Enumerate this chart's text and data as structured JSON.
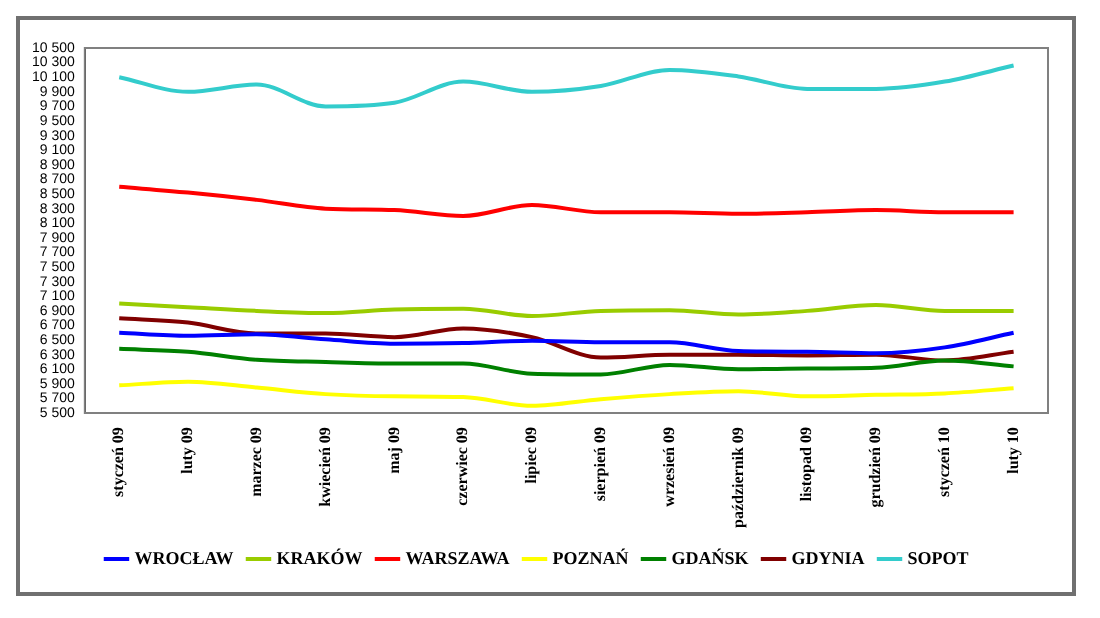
{
  "chart_data": {
    "type": "line",
    "categories": [
      "styczeń 09",
      "luty 09",
      "marzec 09",
      "kwiecień 09",
      "maj 09",
      "czerwiec 09",
      "lipiec 09",
      "sierpień 09",
      "wrzesień 09",
      "październik 09",
      "listopad 09",
      "grudzień 09",
      "styczeń 10",
      "luty 10"
    ],
    "series": [
      {
        "name": "WROCŁAW",
        "color": "#0000ff",
        "values": [
          6600,
          6560,
          6580,
          6510,
          6450,
          6460,
          6490,
          6470,
          6470,
          6350,
          6340,
          6320,
          6400,
          6600
        ]
      },
      {
        "name": "KRAKÓW",
        "color": "#99cc00",
        "values": [
          7000,
          6950,
          6900,
          6870,
          6920,
          6930,
          6830,
          6900,
          6910,
          6850,
          6900,
          6980,
          6900,
          6900
        ]
      },
      {
        "name": "WARSZAWA",
        "color": "#ff0000",
        "values": [
          8600,
          8520,
          8420,
          8300,
          8280,
          8200,
          8350,
          8250,
          8250,
          8230,
          8250,
          8280,
          8250,
          8250
        ]
      },
      {
        "name": "POZNAŃ",
        "color": "#ffff00",
        "values": [
          5880,
          5930,
          5850,
          5760,
          5730,
          5720,
          5600,
          5690,
          5760,
          5800,
          5730,
          5750,
          5770,
          5840
        ]
      },
      {
        "name": "GDAŃSK",
        "color": "#008000",
        "values": [
          6380,
          6340,
          6230,
          6200,
          6180,
          6180,
          6040,
          6030,
          6160,
          6100,
          6110,
          6120,
          6220,
          6140
        ]
      },
      {
        "name": "GDYNIA",
        "color": "#800000",
        "values": [
          6800,
          6740,
          6590,
          6590,
          6540,
          6660,
          6540,
          6260,
          6300,
          6300,
          6290,
          6300,
          6220,
          6340
        ]
      },
      {
        "name": "SOPOT",
        "color": "#33cccc",
        "values": [
          10100,
          9900,
          10000,
          9700,
          9750,
          10040,
          9900,
          9980,
          10200,
          10110,
          9940,
          9940,
          10040,
          10260
        ]
      }
    ],
    "ylim": [
      5500,
      10500
    ],
    "yticks": [
      {
        "value": 5500,
        "label": "5 500"
      },
      {
        "value": 5700,
        "label": "5 700"
      },
      {
        "value": 5900,
        "label": "5 900"
      },
      {
        "value": 6100,
        "label": "6 100"
      },
      {
        "value": 6300,
        "label": "6 300"
      },
      {
        "value": 6500,
        "label": "6 500"
      },
      {
        "value": 6700,
        "label": "6 700"
      },
      {
        "value": 6900,
        "label": "6 900"
      },
      {
        "value": 7100,
        "label": "7 100"
      },
      {
        "value": 7300,
        "label": "7 300"
      },
      {
        "value": 7500,
        "label": "7 500"
      },
      {
        "value": 7700,
        "label": "7 700"
      },
      {
        "value": 7900,
        "label": "7 900"
      },
      {
        "value": 8100,
        "label": "8 100"
      },
      {
        "value": 8300,
        "label": "8 300"
      },
      {
        "value": 8500,
        "label": "8 500"
      },
      {
        "value": 8700,
        "label": "8 700"
      },
      {
        "value": 8900,
        "label": "8 900"
      },
      {
        "value": 9100,
        "label": "9 100"
      },
      {
        "value": 9300,
        "label": "9 300"
      },
      {
        "value": 9500,
        "label": "9 500"
      },
      {
        "value": 9700,
        "label": "9 700"
      },
      {
        "value": 9900,
        "label": "9 900"
      },
      {
        "value": 10100,
        "label": "10 100"
      },
      {
        "value": 10300,
        "label": "10 300"
      },
      {
        "value": 10500,
        "label": "10 500"
      }
    ],
    "grid": false,
    "legend": "bottom",
    "marker": "none",
    "line_style": "solid"
  }
}
